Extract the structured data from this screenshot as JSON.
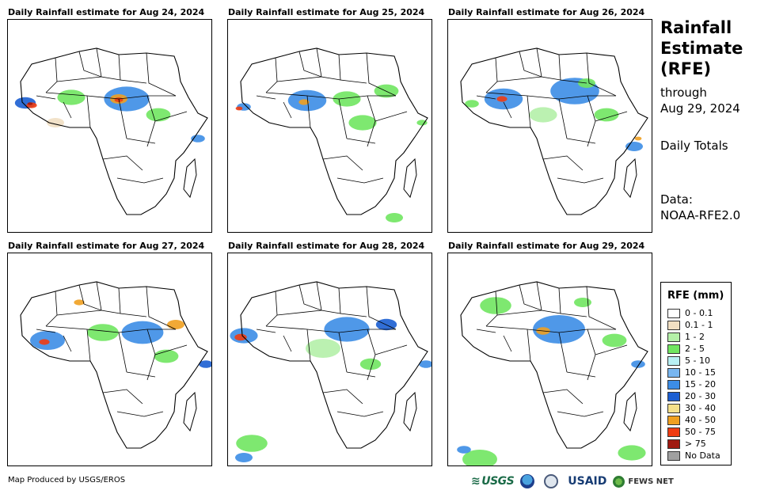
{
  "panels": [
    {
      "title": "Daily Rainfall estimate for Aug 24, 2024"
    },
    {
      "title": "Daily Rainfall estimate for Aug 25, 2024"
    },
    {
      "title": "Daily Rainfall estimate for Aug 26, 2024"
    },
    {
      "title": "Daily Rainfall estimate for Aug 27, 2024"
    },
    {
      "title": "Daily Rainfall estimate for Aug 28, 2024"
    },
    {
      "title": "Daily Rainfall estimate for Aug 29, 2024"
    }
  ],
  "side": {
    "title_lines": [
      "Rainfall",
      "Estimate",
      "(RFE)"
    ],
    "through_lines": [
      "through",
      "Aug 29, 2024"
    ],
    "totals": "Daily Totals",
    "data_lines": [
      "Data:",
      "NOAA-RFE2.0"
    ]
  },
  "legend": {
    "title": "RFE (mm)",
    "items": [
      {
        "label": "0 - 0.1",
        "color": "#ffffff"
      },
      {
        "label": "0.1 - 1",
        "color": "#f1dfc3"
      },
      {
        "label": "1 - 2",
        "color": "#b4f0a8"
      },
      {
        "label": "2 - 5",
        "color": "#70e660"
      },
      {
        "label": "5 - 10",
        "color": "#b8f0f4"
      },
      {
        "label": "10 - 15",
        "color": "#78b6f0"
      },
      {
        "label": "15 - 20",
        "color": "#3c8de6"
      },
      {
        "label": "20 - 30",
        "color": "#1b5ed2"
      },
      {
        "label": "30 - 40",
        "color": "#f5e08a"
      },
      {
        "label": "40 - 50",
        "color": "#f0a020"
      },
      {
        "label": "50 - 75",
        "color": "#f03c12"
      },
      {
        "label": "> 75",
        "color": "#a01a10"
      },
      {
        "label": "No Data",
        "color": "#a0a0a0"
      }
    ]
  },
  "credit": "Map Produced by USGS/EROS",
  "logos": {
    "usgs": "USGS",
    "usaid": "USAID",
    "fews": "FEWS NET"
  }
}
